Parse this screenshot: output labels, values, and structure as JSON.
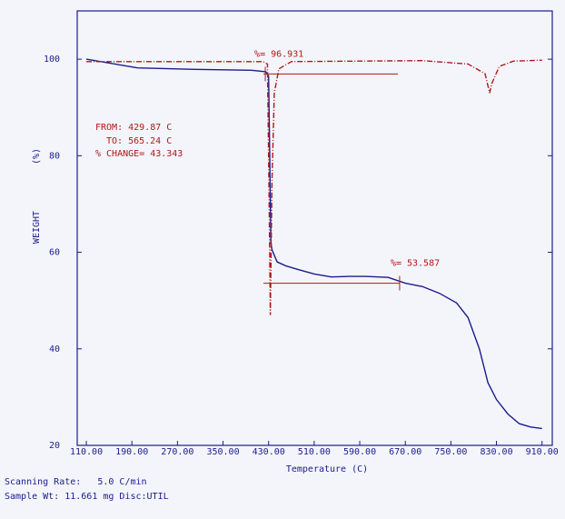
{
  "chart_data": {
    "type": "line",
    "xlabel": "Temperature (C)",
    "ylabel": "WEIGHT",
    "ylabel_unit": "(%)",
    "xlim": [
      94,
      928
    ],
    "ylim": [
      20,
      110
    ],
    "xticks": [
      {
        "value": 110,
        "label": "110.00"
      },
      {
        "value": 190,
        "label": "190.00"
      },
      {
        "value": 270,
        "label": "270.00"
      },
      {
        "value": 350,
        "label": "350.00"
      },
      {
        "value": 430,
        "label": "430.00"
      },
      {
        "value": 510,
        "label": "510.00"
      },
      {
        "value": 590,
        "label": "590.00"
      },
      {
        "value": 670,
        "label": "670.00"
      },
      {
        "value": 750,
        "label": "750.00"
      },
      {
        "value": 830,
        "label": "830.00"
      },
      {
        "value": 910,
        "label": "910.00"
      }
    ],
    "yticks": [
      20,
      40,
      60,
      80,
      100
    ],
    "series": [
      {
        "color": "#1c1c8a",
        "x": [
          110,
          200,
          300,
          400,
          425,
          430,
          432,
          434,
          436,
          445,
          460,
          480,
          510,
          540,
          570,
          600,
          640,
          670,
          700,
          730,
          760,
          780,
          800,
          815,
          830,
          850,
          870,
          890,
          910
        ],
        "values": [
          100,
          98.2,
          97.9,
          97.7,
          97.4,
          96.5,
          80,
          62,
          60.5,
          58,
          57.2,
          56.5,
          55.5,
          54.9,
          55,
          55,
          54.8,
          53.6,
          52.9,
          51.5,
          49.5,
          46.5,
          40,
          33,
          29.5,
          26.5,
          24.5,
          23.8,
          23.5
        ]
      },
      {
        "color": "#b01818",
        "dashed": true,
        "x": [
          110,
          420,
          428,
          431,
          433,
          436,
          440,
          448,
          470,
          700,
          780,
          810,
          818,
          822,
          835,
          860,
          910
        ],
        "values": [
          99.5,
          99.5,
          99,
          70,
          47,
          75,
          93,
          98,
          99.5,
          99.7,
          99,
          97,
          93,
          95,
          98.5,
          99.6,
          99.8
        ]
      }
    ],
    "annotations": [
      {
        "text": "%= 96.931",
        "value": 96.931,
        "x": [
          421,
          657
        ]
      },
      {
        "text": "%= 53.587",
        "value": 53.587,
        "x": [
          421,
          660
        ]
      }
    ],
    "range_text": [
      "FROM: 429.87 C",
      "TO: 565.24 C",
      "% CHANGE= 43.343"
    ],
    "footer": [
      "Scanning Rate:   5.0 C/min",
      "Sample Wt: 11.661 mg Disc:UTIL"
    ]
  }
}
